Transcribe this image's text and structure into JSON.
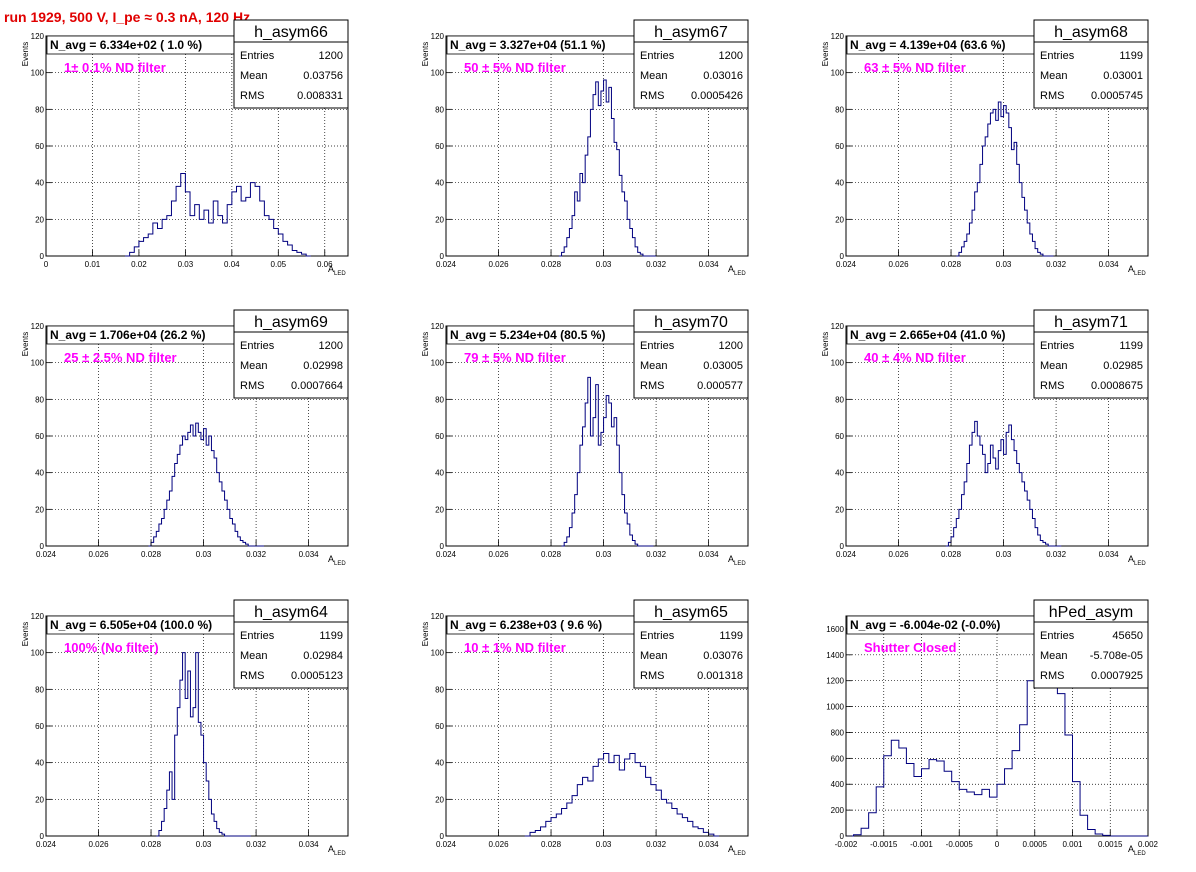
{
  "header": {
    "title": "run 1929,   500 V, I_pe ≈ 0.3 nA, 120 Hz"
  },
  "colors": {
    "title": "#e00000",
    "histogram": "#00007f",
    "label": "#ff00ff",
    "grid": "#000000"
  },
  "chart_data": [
    {
      "type": "histogram",
      "name": "h_asym66",
      "title": "N_avg = 6.334e+02 ( 1.0 %)",
      "annotation": "1± 0.1% ND filter",
      "stats": {
        "entries": "1200",
        "mean": "0.03756",
        "rms": "0.008331"
      },
      "xlabel": "A",
      "xlabel_sub": "LED",
      "ylabel": "Events",
      "xlim": [
        0,
        0.065
      ],
      "ylim": [
        0,
        120
      ],
      "xticks": [
        0,
        0.01,
        0.02,
        0.03,
        0.04,
        0.05,
        0.06
      ],
      "xtick_labels": [
        "0",
        "0.01",
        "0.02",
        "0.03",
        "0.04",
        "0.05",
        "0.06"
      ],
      "yticks": [
        0,
        20,
        40,
        60,
        80,
        100,
        120
      ],
      "ytick_labels": [
        "0",
        "20",
        "40",
        "60",
        "80",
        "100",
        "120"
      ],
      "bin_width": 0.001,
      "bin_edges": [
        0.017,
        0.018,
        0.019,
        0.02,
        0.021,
        0.022,
        0.023,
        0.024,
        0.025,
        0.026,
        0.027,
        0.028,
        0.029,
        0.03,
        0.031,
        0.032,
        0.033,
        0.034,
        0.035,
        0.036,
        0.037,
        0.038,
        0.039,
        0.04,
        0.041,
        0.042,
        0.043,
        0.044,
        0.045,
        0.046,
        0.047,
        0.048,
        0.049,
        0.05,
        0.051,
        0.052,
        0.053,
        0.054,
        0.055,
        0.056,
        0.057
      ],
      "values": [
        0,
        2,
        5,
        8,
        10,
        12,
        18,
        15,
        20,
        22,
        30,
        38,
        45,
        35,
        22,
        28,
        20,
        25,
        18,
        30,
        22,
        18,
        28,
        35,
        38,
        30,
        32,
        40,
        38,
        30,
        22,
        20,
        15,
        12,
        8,
        6,
        3,
        2,
        1,
        0
      ]
    },
    {
      "type": "histogram",
      "name": "h_asym67",
      "title": "N_avg = 3.327e+04 (51.1 %)",
      "annotation": "50 ± 5% ND filter",
      "stats": {
        "entries": "1200",
        "mean": "0.03016",
        "rms": "0.0005426"
      },
      "xlabel": "A",
      "xlabel_sub": "LED",
      "ylabel": "Events",
      "xlim": [
        0.024,
        0.0355
      ],
      "ylim": [
        0,
        120
      ],
      "xticks": [
        0.024,
        0.026,
        0.028,
        0.03,
        0.032,
        0.034
      ],
      "xtick_labels": [
        "0.024",
        "0.026",
        "0.028",
        "0.03",
        "0.032",
        "0.034"
      ],
      "yticks": [
        0,
        20,
        40,
        60,
        80,
        100,
        120
      ],
      "ytick_labels": [
        "0",
        "20",
        "40",
        "60",
        "80",
        "100",
        "120"
      ],
      "bin_width": 0.0001,
      "bin_edges": [
        0.0283,
        0.0284,
        0.0285,
        0.0286,
        0.0287,
        0.0288,
        0.0289,
        0.029,
        0.0291,
        0.0292,
        0.0293,
        0.0294,
        0.0295,
        0.0296,
        0.0297,
        0.0298,
        0.0299,
        0.03,
        0.0301,
        0.0302,
        0.0303,
        0.0304,
        0.0305,
        0.0306,
        0.0307,
        0.0308,
        0.0309,
        0.031,
        0.0311,
        0.0312,
        0.0313,
        0.0314,
        0.0315,
        0.0316,
        0.0317,
        0.0318,
        0.0319,
        0.032
      ],
      "values": [
        0,
        2,
        5,
        10,
        15,
        22,
        35,
        30,
        45,
        40,
        55,
        65,
        80,
        88,
        95,
        82,
        90,
        96,
        84,
        92,
        75,
        62,
        58,
        44,
        35,
        30,
        20,
        15,
        10,
        5,
        2,
        1,
        0,
        0,
        0,
        0,
        0
      ]
    },
    {
      "type": "histogram",
      "name": "h_asym68",
      "title": "N_avg = 4.139e+04 (63.6 %)",
      "annotation": "63 ± 5% ND filter",
      "stats": {
        "entries": "1199",
        "mean": "0.03001",
        "rms": "0.0005745"
      },
      "xlabel": "A",
      "xlabel_sub": "LED",
      "ylabel": "Events",
      "xlim": [
        0.024,
        0.0355
      ],
      "ylim": [
        0,
        120
      ],
      "xticks": [
        0.024,
        0.026,
        0.028,
        0.03,
        0.032,
        0.034
      ],
      "xtick_labels": [
        "0.024",
        "0.026",
        "0.028",
        "0.03",
        "0.032",
        "0.034"
      ],
      "yticks": [
        0,
        20,
        40,
        60,
        80,
        100,
        120
      ],
      "ytick_labels": [
        "0",
        "20",
        "40",
        "60",
        "80",
        "100",
        "120"
      ],
      "bin_width": 0.0001,
      "bin_edges": [
        0.0282,
        0.0283,
        0.0284,
        0.0285,
        0.0286,
        0.0287,
        0.0288,
        0.0289,
        0.029,
        0.0291,
        0.0292,
        0.0293,
        0.0294,
        0.0295,
        0.0296,
        0.0297,
        0.0298,
        0.0299,
        0.03,
        0.0301,
        0.0302,
        0.0303,
        0.0304,
        0.0305,
        0.0306,
        0.0307,
        0.0308,
        0.0309,
        0.031,
        0.0311,
        0.0312,
        0.0313,
        0.0314,
        0.0315,
        0.0316,
        0.0317,
        0.0318,
        0.0319
      ],
      "values": [
        0,
        2,
        5,
        8,
        12,
        18,
        25,
        35,
        40,
        50,
        60,
        65,
        72,
        78,
        80,
        74,
        84,
        76,
        82,
        78,
        70,
        58,
        62,
        50,
        40,
        32,
        25,
        18,
        12,
        8,
        4,
        2,
        1,
        0,
        0,
        0,
        0
      ]
    },
    {
      "type": "histogram",
      "name": "h_asym69",
      "title": "N_avg = 1.706e+04 (26.2 %)",
      "annotation": "25 ± 2.5% ND filter",
      "stats": {
        "entries": "1200",
        "mean": "0.02998",
        "rms": "0.0007664"
      },
      "xlabel": "A",
      "xlabel_sub": "LED",
      "ylabel": "Events",
      "xlim": [
        0.024,
        0.0355
      ],
      "ylim": [
        0,
        120
      ],
      "xticks": [
        0.024,
        0.026,
        0.028,
        0.03,
        0.032,
        0.034
      ],
      "xtick_labels": [
        "0.024",
        "0.026",
        "0.028",
        "0.03",
        "0.032",
        "0.034"
      ],
      "yticks": [
        0,
        20,
        40,
        60,
        80,
        100,
        120
      ],
      "ytick_labels": [
        "0",
        "20",
        "40",
        "60",
        "80",
        "100",
        "120"
      ],
      "bin_width": 0.0001,
      "bin_edges": [
        0.0279,
        0.028,
        0.0281,
        0.0282,
        0.0283,
        0.0284,
        0.0285,
        0.0286,
        0.0287,
        0.0288,
        0.0289,
        0.029,
        0.0291,
        0.0292,
        0.0293,
        0.0294,
        0.0295,
        0.0296,
        0.0297,
        0.0298,
        0.0299,
        0.03,
        0.0301,
        0.0302,
        0.0303,
        0.0304,
        0.0305,
        0.0306,
        0.0307,
        0.0308,
        0.0309,
        0.031,
        0.0311,
        0.0312,
        0.0313,
        0.0314,
        0.0315,
        0.0316,
        0.0317,
        0.0318,
        0.0319,
        0.032,
        0.0321,
        0.0322,
        0.0323
      ],
      "values": [
        0,
        2,
        5,
        8,
        12,
        15,
        20,
        25,
        30,
        38,
        45,
        50,
        55,
        60,
        58,
        62,
        66,
        60,
        67,
        62,
        58,
        64,
        55,
        60,
        52,
        48,
        40,
        35,
        30,
        25,
        20,
        15,
        12,
        8,
        5,
        3,
        2,
        1,
        0,
        0,
        0,
        0,
        0,
        0
      ]
    },
    {
      "type": "histogram",
      "name": "h_asym70",
      "title": "N_avg = 5.234e+04 (80.5 %)",
      "annotation": "79 ± 5% ND filter",
      "stats": {
        "entries": "1200",
        "mean": "0.03005",
        "rms": "0.000577"
      },
      "xlabel": "A",
      "xlabel_sub": "LED",
      "ylabel": "Events",
      "xlim": [
        0.024,
        0.0355
      ],
      "ylim": [
        0,
        120
      ],
      "xticks": [
        0.024,
        0.026,
        0.028,
        0.03,
        0.032,
        0.034
      ],
      "xtick_labels": [
        "0.024",
        "0.026",
        "0.028",
        "0.03",
        "0.032",
        "0.034"
      ],
      "yticks": [
        0,
        20,
        40,
        60,
        80,
        100,
        120
      ],
      "ytick_labels": [
        "0",
        "20",
        "40",
        "60",
        "80",
        "100",
        "120"
      ],
      "bin_width": 0.0001,
      "bin_edges": [
        0.0284,
        0.0285,
        0.0286,
        0.0287,
        0.0288,
        0.0289,
        0.029,
        0.0291,
        0.0292,
        0.0293,
        0.0294,
        0.0295,
        0.0296,
        0.0297,
        0.0298,
        0.0299,
        0.03,
        0.0301,
        0.0302,
        0.0303,
        0.0304,
        0.0305,
        0.0306,
        0.0307,
        0.0308,
        0.0309,
        0.031,
        0.0311,
        0.0312,
        0.0313,
        0.0314,
        0.0315,
        0.0316,
        0.0317,
        0.0318,
        0.0319
      ],
      "values": [
        0,
        2,
        5,
        10,
        18,
        28,
        40,
        55,
        65,
        78,
        92,
        60,
        70,
        88,
        55,
        62,
        70,
        82,
        78,
        65,
        70,
        55,
        40,
        28,
        18,
        12,
        6,
        3,
        1,
        0,
        0,
        0,
        0,
        0,
        0
      ]
    },
    {
      "type": "histogram",
      "name": "h_asym71",
      "title": "N_avg = 2.665e+04 (41.0 %)",
      "annotation": "40 ± 4% ND filter",
      "stats": {
        "entries": "1199",
        "mean": "0.02985",
        "rms": "0.0008675"
      },
      "xlabel": "A",
      "xlabel_sub": "LED",
      "ylabel": "Events",
      "xlim": [
        0.024,
        0.0355
      ],
      "ylim": [
        0,
        120
      ],
      "xticks": [
        0.024,
        0.026,
        0.028,
        0.03,
        0.032,
        0.034
      ],
      "xtick_labels": [
        "0.024",
        "0.026",
        "0.028",
        "0.03",
        "0.032",
        "0.034"
      ],
      "yticks": [
        0,
        20,
        40,
        60,
        80,
        100,
        120
      ],
      "ytick_labels": [
        "0",
        "20",
        "40",
        "60",
        "80",
        "100",
        "120"
      ],
      "bin_width": 0.0001,
      "bin_edges": [
        0.0278,
        0.0279,
        0.028,
        0.0281,
        0.0282,
        0.0283,
        0.0284,
        0.0285,
        0.0286,
        0.0287,
        0.0288,
        0.0289,
        0.029,
        0.0291,
        0.0292,
        0.0293,
        0.0294,
        0.0295,
        0.0296,
        0.0297,
        0.0298,
        0.0299,
        0.03,
        0.0301,
        0.0302,
        0.0303,
        0.0304,
        0.0305,
        0.0306,
        0.0307,
        0.0308,
        0.0309,
        0.031,
        0.0311,
        0.0312,
        0.0313,
        0.0314,
        0.0315,
        0.0316,
        0.0317,
        0.0318,
        0.0319,
        0.032,
        0.0321,
        0.0322
      ],
      "values": [
        0,
        2,
        5,
        10,
        15,
        20,
        28,
        35,
        45,
        55,
        62,
        68,
        60,
        55,
        50,
        40,
        45,
        55,
        48,
        42,
        52,
        58,
        50,
        62,
        66,
        58,
        52,
        45,
        40,
        35,
        30,
        25,
        20,
        15,
        10,
        6,
        3,
        2,
        1,
        0,
        0,
        0,
        0,
        0
      ]
    },
    {
      "type": "histogram",
      "name": "h_asym64",
      "title": "N_avg = 6.505e+04 (100.0 %)",
      "annotation": "100% (No filter)",
      "stats": {
        "entries": "1199",
        "mean": "0.02984",
        "rms": "0.0005123"
      },
      "xlabel": "A",
      "xlabel_sub": "LED",
      "ylabel": "Events",
      "xlim": [
        0.024,
        0.0355
      ],
      "ylim": [
        0,
        120
      ],
      "xticks": [
        0.024,
        0.026,
        0.028,
        0.03,
        0.032,
        0.034
      ],
      "xtick_labels": [
        "0.024",
        "0.026",
        "0.028",
        "0.03",
        "0.032",
        "0.034"
      ],
      "yticks": [
        0,
        20,
        40,
        60,
        80,
        100,
        120
      ],
      "ytick_labels": [
        "0",
        "20",
        "40",
        "60",
        "80",
        "100",
        "120"
      ],
      "bin_width": 0.0001,
      "bin_edges": [
        0.0282,
        0.0283,
        0.0284,
        0.0285,
        0.0286,
        0.0287,
        0.0288,
        0.0289,
        0.029,
        0.0291,
        0.0292,
        0.0293,
        0.0294,
        0.0295,
        0.0296,
        0.0297,
        0.0298,
        0.0299,
        0.03,
        0.0301,
        0.0302,
        0.0303,
        0.0304,
        0.0305,
        0.0306,
        0.0307,
        0.0308,
        0.0309,
        0.031,
        0.0311,
        0.0312,
        0.0313,
        0.0314,
        0.0315,
        0.0316,
        0.0317,
        0.0318
      ],
      "values": [
        0,
        3,
        8,
        15,
        25,
        35,
        20,
        55,
        70,
        85,
        100,
        75,
        90,
        65,
        70,
        100,
        62,
        55,
        40,
        30,
        20,
        12,
        8,
        4,
        2,
        1,
        0,
        0,
        0,
        0,
        0,
        0,
        0,
        0,
        0,
        0
      ]
    },
    {
      "type": "histogram",
      "name": "h_asym65",
      "title": "N_avg = 6.238e+03 ( 9.6 %)",
      "annotation": "10 ± 1% ND filter",
      "stats": {
        "entries": "1199",
        "mean": "0.03076",
        "rms": "0.001318"
      },
      "xlabel": "A",
      "xlabel_sub": "LED",
      "ylabel": "Events",
      "xlim": [
        0.024,
        0.0355
      ],
      "ylim": [
        0,
        120
      ],
      "xticks": [
        0.024,
        0.026,
        0.028,
        0.03,
        0.032,
        0.034
      ],
      "xtick_labels": [
        "0.024",
        "0.026",
        "0.028",
        "0.03",
        "0.032",
        "0.034"
      ],
      "yticks": [
        0,
        20,
        40,
        60,
        80,
        100,
        120
      ],
      "ytick_labels": [
        "0",
        "20",
        "40",
        "60",
        "80",
        "100",
        "120"
      ],
      "bin_width": 0.0002,
      "bin_edges": [
        0.027,
        0.0272,
        0.0274,
        0.0276,
        0.0278,
        0.028,
        0.0282,
        0.0284,
        0.0286,
        0.0288,
        0.029,
        0.0292,
        0.0294,
        0.0296,
        0.0298,
        0.03,
        0.0302,
        0.0304,
        0.0306,
        0.0308,
        0.031,
        0.0312,
        0.0314,
        0.0316,
        0.0318,
        0.032,
        0.0322,
        0.0324,
        0.0326,
        0.0328,
        0.033,
        0.0332,
        0.0334,
        0.0336,
        0.0338,
        0.034,
        0.0342,
        0.0344
      ],
      "values": [
        0,
        2,
        3,
        5,
        8,
        10,
        12,
        15,
        18,
        22,
        28,
        32,
        30,
        38,
        42,
        45,
        40,
        44,
        36,
        42,
        45,
        40,
        38,
        32,
        28,
        25,
        20,
        18,
        15,
        12,
        10,
        8,
        5,
        4,
        2,
        1,
        0
      ]
    },
    {
      "type": "histogram",
      "name": "hPed_asym",
      "title": "N_avg = -6.004e-02 (-0.0%)",
      "annotation": "Shutter Closed",
      "stats": {
        "entries": "45650",
        "mean": "-5.708e-05",
        "rms": "0.0007925"
      },
      "xlabel": "A",
      "xlabel_sub": "LED",
      "ylabel": "",
      "xlim": [
        -0.002,
        0.002
      ],
      "ylim": [
        0,
        1700
      ],
      "xticks": [
        -0.002,
        -0.0015,
        -0.001,
        -0.0005,
        0,
        0.0005,
        0.001,
        0.0015,
        0.002
      ],
      "xtick_labels": [
        "-0.002",
        "-0.0015",
        "-0.001",
        "-0.0005",
        "0",
        "0.0005",
        "0.001",
        "0.0015",
        "0.002"
      ],
      "yticks": [
        0,
        200,
        400,
        600,
        800,
        1000,
        1200,
        1400,
        1600
      ],
      "ytick_labels": [
        "0",
        "200",
        "400",
        "600",
        "800",
        "1000",
        "1200",
        "1400",
        "1600"
      ],
      "bin_width": 0.0001,
      "bin_edges": [
        -0.002,
        -0.0019,
        -0.0018,
        -0.0017,
        -0.0016,
        -0.0015,
        -0.0014,
        -0.0013,
        -0.0012,
        -0.0011,
        -0.001,
        -0.0009,
        -0.0008,
        -0.0007,
        -0.0006,
        -0.0005,
        -0.0004,
        -0.0003,
        -0.0002,
        -0.0001,
        0.0,
        0.0001,
        0.0002,
        0.0003,
        0.0004,
        0.0005,
        0.0006,
        0.0007,
        0.0008,
        0.0009,
        0.001,
        0.0011,
        0.0012,
        0.0013,
        0.0014,
        0.0015,
        0.0016,
        0.0017,
        0.0018,
        0.0019,
        0.002
      ],
      "values": [
        0,
        10,
        60,
        180,
        380,
        620,
        740,
        680,
        560,
        460,
        520,
        590,
        580,
        500,
        420,
        360,
        340,
        320,
        360,
        300,
        400,
        520,
        660,
        860,
        1200,
        1500,
        1630,
        1480,
        1100,
        780,
        420,
        160,
        50,
        15,
        5,
        0,
        0,
        0,
        0,
        0
      ]
    }
  ]
}
